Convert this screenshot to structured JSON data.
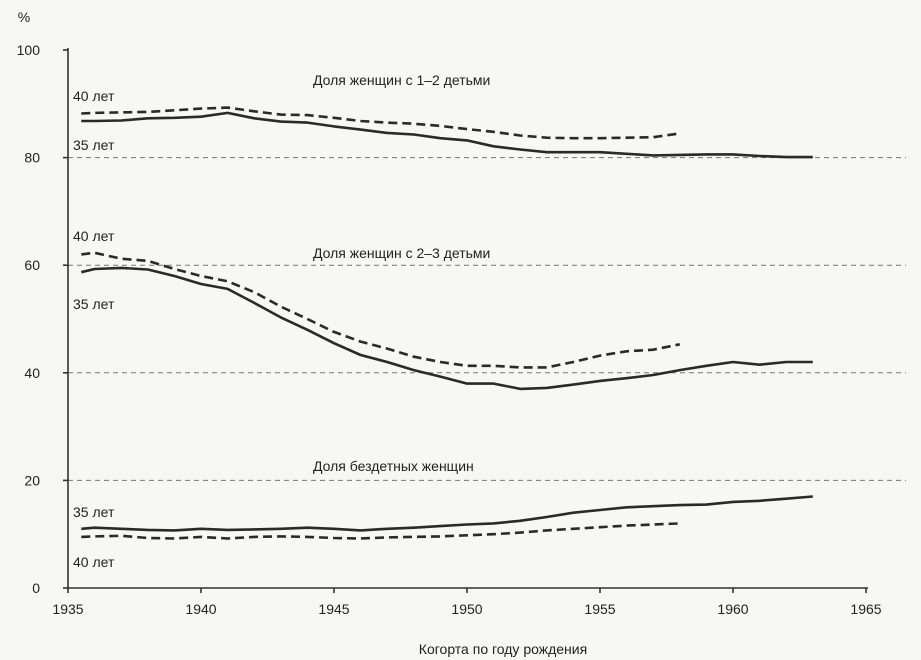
{
  "chart_data": {
    "type": "line",
    "ylabel": "%",
    "xlabel": "Когорта по году рождения",
    "xlim": [
      1935,
      1966
    ],
    "ylim": [
      0,
      100
    ],
    "xticks": [
      1935,
      1940,
      1945,
      1950,
      1955,
      1960,
      1965
    ],
    "yticks": [
      0,
      20,
      40,
      60,
      80,
      100
    ],
    "dashed_gridlines_at": [
      20,
      40,
      60,
      80
    ],
    "groups": [
      {
        "title": "Доля женщин с 1–2 детьми",
        "series": [
          {
            "name": "35 лет",
            "style": "solid",
            "x": [
              1935.5,
              1936,
              1937,
              1938,
              1939,
              1940,
              1941,
              1942,
              1943,
              1944,
              1945,
              1946,
              1947,
              1948,
              1949,
              1950,
              1951,
              1952,
              1953,
              1954,
              1955,
              1956,
              1957,
              1958,
              1959,
              1960,
              1961,
              1962,
              1963
            ],
            "y": [
              86.8,
              86.8,
              86.9,
              87.3,
              87.4,
              87.6,
              88.3,
              87.3,
              86.7,
              86.5,
              85.8,
              85.2,
              84.6,
              84.3,
              83.6,
              83.2,
              82.1,
              81.5,
              81.0,
              81.0,
              81.0,
              80.7,
              80.4,
              80.5,
              80.6,
              80.6,
              80.3,
              80.1,
              80.1
            ]
          },
          {
            "name": "40 лет",
            "style": "dashed",
            "x": [
              1935.5,
              1936,
              1937,
              1938,
              1939,
              1940,
              1941,
              1942,
              1943,
              1944,
              1945,
              1946,
              1947,
              1948,
              1949,
              1950,
              1951,
              1952,
              1953,
              1954,
              1955,
              1956,
              1957,
              1958
            ],
            "y": [
              88.2,
              88.3,
              88.4,
              88.5,
              88.8,
              89.1,
              89.3,
              88.6,
              88.0,
              87.9,
              87.4,
              86.8,
              86.5,
              86.3,
              85.9,
              85.3,
              84.8,
              84.1,
              83.7,
              83.6,
              83.6,
              83.7,
              83.8,
              84.5
            ]
          }
        ]
      },
      {
        "title": "Доля женщин с 2–3 детьми",
        "series": [
          {
            "name": "35 лет",
            "style": "solid",
            "x": [
              1935.5,
              1936,
              1937,
              1938,
              1939,
              1940,
              1941,
              1942,
              1943,
              1944,
              1945,
              1946,
              1947,
              1948,
              1949,
              1950,
              1951,
              1952,
              1953,
              1954,
              1955,
              1956,
              1957,
              1958,
              1959,
              1960,
              1961,
              1962,
              1963
            ],
            "y": [
              58.7,
              59.3,
              59.5,
              59.2,
              58.0,
              56.5,
              55.6,
              53.0,
              50.3,
              48.0,
              45.5,
              43.3,
              42.0,
              40.5,
              39.3,
              38.0,
              38.0,
              37.0,
              37.2,
              37.8,
              38.5,
              39.0,
              39.6,
              40.5,
              41.3,
              42.0,
              41.5,
              42.0,
              42.0
            ]
          },
          {
            "name": "40 лет",
            "style": "dashed",
            "x": [
              1935.5,
              1936,
              1937,
              1938,
              1939,
              1940,
              1941,
              1942,
              1943,
              1944,
              1945,
              1946,
              1947,
              1948,
              1949,
              1950,
              1951,
              1952,
              1953,
              1954,
              1955,
              1956,
              1957,
              1958
            ],
            "y": [
              62.0,
              62.3,
              61.2,
              60.8,
              59.3,
              58.0,
              57.0,
              55.0,
              52.3,
              50.0,
              47.6,
              45.8,
              44.5,
              43.0,
              42.0,
              41.3,
              41.3,
              41.0,
              41.0,
              42.0,
              43.2,
              44.0,
              44.3,
              45.3
            ]
          }
        ]
      },
      {
        "title": "Доля бездетных женщин",
        "series": [
          {
            "name": "35 лет",
            "style": "solid",
            "x": [
              1935.5,
              1936,
              1937,
              1938,
              1939,
              1940,
              1941,
              1942,
              1943,
              1944,
              1945,
              1946,
              1947,
              1948,
              1949,
              1950,
              1951,
              1952,
              1953,
              1954,
              1955,
              1956,
              1957,
              1958,
              1959,
              1960,
              1961,
              1962,
              1963
            ],
            "y": [
              11.0,
              11.2,
              11.0,
              10.8,
              10.7,
              11.0,
              10.8,
              10.9,
              11.0,
              11.2,
              11.0,
              10.7,
              11.0,
              11.2,
              11.5,
              11.8,
              12.0,
              12.5,
              13.2,
              14.0,
              14.5,
              15.0,
              15.2,
              15.4,
              15.5,
              16.0,
              16.2,
              16.6,
              17.0
            ]
          },
          {
            "name": "40 лет",
            "style": "dashed",
            "x": [
              1935.5,
              1936,
              1937,
              1938,
              1939,
              1940,
              1941,
              1942,
              1943,
              1944,
              1945,
              1946,
              1947,
              1948,
              1949,
              1950,
              1951,
              1952,
              1953,
              1954,
              1955,
              1956,
              1957,
              1958
            ],
            "y": [
              9.5,
              9.6,
              9.7,
              9.3,
              9.2,
              9.5,
              9.2,
              9.5,
              9.6,
              9.5,
              9.3,
              9.2,
              9.4,
              9.5,
              9.6,
              9.8,
              10.0,
              10.3,
              10.7,
              11.0,
              11.3,
              11.6,
              11.8,
              12.0
            ]
          }
        ]
      }
    ]
  }
}
